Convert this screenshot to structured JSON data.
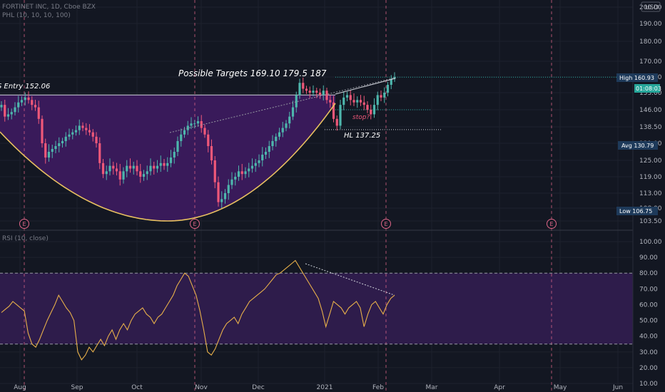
{
  "header": {
    "title": "FORTINET INC, 1D, Cboe BZX",
    "indicator": "PHL (10, 10, 10, 100)",
    "currency": "USD"
  },
  "rsi_header": "RSI (10, close)",
  "annotations": {
    "targets": "Possible Targets  169.10 179.5    187",
    "entry": "S Entry  152.06",
    "stop": "stop?",
    "hl": "HL 137.25"
  },
  "price_tags": {
    "high": "High  160.93",
    "current": "01:08:03",
    "avg": "Avg  130.79",
    "low": "Low  106.75"
  },
  "event_marker": "E",
  "colors": {
    "background": "#131722",
    "cup_fill": "#3b1a5e",
    "cup_line": "#e8c060",
    "up_candle": "#4db6ac",
    "down_candle": "#ef5879",
    "rsi_line": "#e8b04a",
    "rsi_band": "#2e1c4b",
    "event": "#e06688",
    "high_tag": "#2b4a6b",
    "current_tag": "#26a69a",
    "low_tag": "#2b4a6b"
  },
  "chart_data": [
    {
      "type": "candlestick",
      "title": "FORTINET INC, 1D, Cboe BZX",
      "x_ticks": [
        "Aug",
        "Sep",
        "Oct",
        "Nov",
        "Dec",
        "2021",
        "Feb",
        "Mar",
        "Apr",
        "May",
        "Jun"
      ],
      "y_ticks": [
        103.5,
        108,
        113,
        119,
        125,
        131,
        138.5,
        146,
        153,
        161,
        170,
        180,
        190,
        200
      ],
      "ylim": [
        101,
        202
      ],
      "close": [
        148,
        143,
        144,
        145,
        147,
        149,
        150,
        151,
        150,
        148,
        147,
        142,
        131,
        126,
        128,
        129,
        130,
        131,
        132,
        134,
        135,
        136,
        137,
        139,
        138,
        137,
        136,
        134,
        131,
        124,
        120,
        121,
        123,
        122,
        121,
        118,
        121,
        123,
        122,
        123,
        121,
        119,
        120,
        121,
        123,
        122,
        123,
        124,
        123,
        124,
        126,
        128,
        132,
        135,
        137,
        139,
        140,
        140,
        141,
        138,
        135,
        130,
        125,
        117,
        110,
        111,
        113,
        116,
        118,
        119,
        121,
        120,
        121,
        122,
        123,
        124,
        125,
        127,
        128,
        130,
        132,
        134,
        136,
        138,
        140,
        143,
        147,
        152,
        158,
        155,
        154,
        153,
        154,
        153,
        152,
        154,
        150,
        149,
        142,
        139,
        148,
        151,
        152,
        150,
        149,
        150,
        149,
        148,
        146,
        144,
        148,
        152,
        151,
        153,
        157,
        160,
        161
      ]
    },
    {
      "type": "line",
      "title": "RSI (10, close)",
      "y_ticks": [
        10,
        20,
        30,
        40,
        50,
        60,
        70,
        80,
        90,
        100
      ],
      "ylim": [
        5,
        105
      ],
      "bands": [
        35,
        80
      ],
      "values": [
        55,
        57,
        59,
        62,
        60,
        58,
        56,
        42,
        35,
        33,
        38,
        44,
        50,
        55,
        60,
        66,
        62,
        58,
        55,
        50,
        30,
        25,
        28,
        33,
        30,
        34,
        38,
        34,
        40,
        44,
        38,
        44,
        48,
        44,
        50,
        54,
        56,
        58,
        54,
        52,
        48,
        52,
        54,
        58,
        62,
        66,
        72,
        76,
        80,
        78,
        72,
        66,
        56,
        44,
        30,
        28,
        32,
        38,
        44,
        48,
        50,
        52,
        48,
        54,
        58,
        62,
        64,
        66,
        68,
        70,
        73,
        76,
        79,
        80,
        82,
        84,
        86,
        88,
        84,
        80,
        76,
        72,
        68,
        64,
        56,
        46,
        54,
        62,
        60,
        58,
        54,
        58,
        60,
        62,
        58,
        46,
        54,
        60,
        62,
        58,
        54,
        60,
        64,
        66
      ]
    }
  ]
}
